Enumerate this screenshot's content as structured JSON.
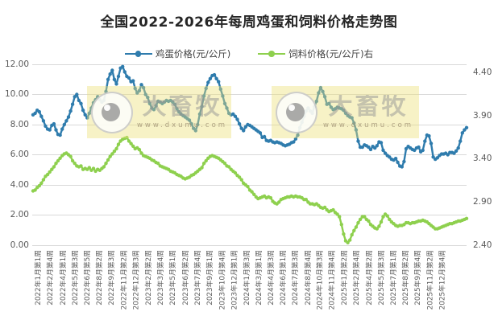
{
  "title": "全国2022-2026年每周鸡蛋和饲料价格走势图",
  "legend": {
    "items": [
      {
        "label": "鸡蛋价格(元/公斤)",
        "color": "#2f7cad"
      },
      {
        "label": "饲料价格(元/公斤)右",
        "color": "#8ed04e"
      }
    ]
  },
  "watermark": {
    "brand": "大畜牧",
    "url": "www.dxumu.com"
  },
  "colors": {
    "egg_line": "#2f7cad",
    "feed_line": "#8ed04e",
    "gridline": "#d9d9d9",
    "axis_text": "#595959",
    "title_text": "#262626",
    "watermark_box": "#ece078"
  },
  "chart_data": {
    "type": "line",
    "title": "全国2022-2026年每周鸡蛋和饲料价格走势图",
    "xlabel": "",
    "ylabel": "",
    "grid": true,
    "legend_position": "top",
    "left_axis": {
      "min": 0,
      "max": 12,
      "tick_labels": [
        "0.00",
        "2.00",
        "4.00",
        "6.00",
        "8.00",
        "10.00",
        "12.00"
      ]
    },
    "right_axis": {
      "min": 2.4,
      "max": 4.5,
      "tick_labels": [
        "2.40",
        "2.90",
        "3.40",
        "3.90",
        "4.40"
      ]
    },
    "x_labels": [
      "2022年1月第1周",
      "2022年2月第4周",
      "2022年4月第1周",
      "2022年5月第3周",
      "2022年6月第5周",
      "2022年8月第2周",
      "2022年9月第3周",
      "2022年11月第2周",
      "2022年12月第3周",
      "2023年2月第2周",
      "2023年3月第4周",
      "2023年5月第1周",
      "2023年6月第2周",
      "2023年7月第4周",
      "2023年9月第1周",
      "2023年10月第4周",
      "2023年12月第1周",
      "2024年1月第3周",
      "2024年3月第1周",
      "2024年4月第3周",
      "2024年6月第1周",
      "2024年7月第3周",
      "2024年8月第4周",
      "2024年10月第3周",
      "2024年11月第4周",
      "2025年1月第2周",
      "2025年2月第4周",
      "2025年4月第2周",
      "2025年5月第3周",
      "2025年7月第1周",
      "2025年8月第2周",
      "2025年9月第4周",
      "2025年11月第2周",
      "2025年12月第4周"
    ],
    "series": [
      {
        "name": "鸡蛋价格(元/公斤)",
        "axis": "left",
        "color": "#2f7cad",
        "values": [
          8.65,
          8.75,
          8.95,
          8.85,
          8.55,
          8.25,
          7.9,
          7.7,
          7.65,
          7.95,
          8.05,
          7.65,
          7.35,
          7.3,
          7.7,
          8.0,
          8.25,
          8.5,
          8.9,
          9.35,
          9.85,
          10.0,
          9.6,
          9.4,
          8.95,
          8.65,
          8.45,
          8.75,
          9.1,
          9.45,
          9.65,
          9.85,
          9.65,
          9.5,
          9.6,
          10.2,
          11.0,
          11.35,
          11.6,
          11.0,
          10.7,
          11.2,
          11.75,
          11.85,
          11.5,
          11.2,
          11.1,
          10.85,
          10.9,
          10.4,
          10.1,
          10.25,
          10.65,
          10.45,
          10.0,
          9.8,
          9.4,
          9.1,
          9.0,
          9.25,
          9.55,
          9.5,
          9.4,
          9.5,
          9.6,
          9.55,
          9.6,
          9.5,
          9.35,
          9.05,
          8.85,
          8.7,
          8.6,
          8.5,
          8.4,
          8.3,
          8.05,
          7.75,
          7.6,
          8.0,
          8.7,
          9.2,
          9.9,
          10.4,
          10.8,
          11.05,
          11.25,
          11.3,
          11.05,
          10.85,
          10.35,
          9.9,
          9.4,
          9.1,
          8.75,
          8.65,
          8.7,
          8.55,
          8.35,
          8.05,
          7.75,
          7.6,
          7.85,
          8.0,
          7.95,
          7.85,
          7.75,
          7.65,
          7.55,
          7.45,
          7.15,
          7.2,
          6.95,
          6.9,
          6.95,
          6.85,
          6.8,
          6.85,
          6.8,
          6.75,
          6.65,
          6.6,
          6.65,
          6.7,
          6.8,
          6.85,
          7.05,
          7.3,
          7.8,
          8.15,
          8.55,
          8.9,
          9.1,
          8.9,
          8.75,
          9.2,
          9.55,
          10.1,
          10.45,
          10.2,
          9.85,
          9.35,
          9.4,
          9.15,
          9.0,
          9.05,
          9.15,
          9.1,
          9.05,
          8.95,
          8.75,
          8.6,
          8.5,
          8.45,
          8.1,
          7.65,
          6.9,
          6.5,
          6.5,
          6.65,
          6.6,
          6.5,
          6.35,
          6.55,
          6.45,
          6.6,
          6.85,
          6.8,
          6.3,
          6.1,
          5.95,
          5.85,
          5.7,
          5.65,
          5.75,
          5.5,
          5.25,
          5.2,
          5.55,
          6.4,
          6.55,
          6.45,
          6.35,
          6.3,
          6.45,
          6.5,
          6.2,
          6.3,
          6.9,
          7.3,
          7.25,
          6.75,
          5.85,
          5.7,
          5.8,
          5.95,
          6.05,
          6.05,
          6.1,
          6.0,
          6.15,
          6.15,
          6.1,
          6.25,
          6.45,
          6.9,
          7.45,
          7.65,
          7.8
        ]
      },
      {
        "name": "饲料价格(元/公斤)右",
        "axis": "right",
        "color": "#8ed04e",
        "values": [
          3.03,
          3.04,
          3.07,
          3.09,
          3.12,
          3.16,
          3.2,
          3.22,
          3.25,
          3.28,
          3.31,
          3.35,
          3.38,
          3.41,
          3.44,
          3.46,
          3.47,
          3.45,
          3.43,
          3.38,
          3.35,
          3.32,
          3.31,
          3.32,
          3.28,
          3.29,
          3.28,
          3.3,
          3.27,
          3.29,
          3.26,
          3.28,
          3.27,
          3.29,
          3.31,
          3.35,
          3.39,
          3.43,
          3.46,
          3.49,
          3.52,
          3.57,
          3.61,
          3.63,
          3.64,
          3.65,
          3.61,
          3.58,
          3.55,
          3.52,
          3.53,
          3.51,
          3.47,
          3.44,
          3.43,
          3.42,
          3.41,
          3.39,
          3.38,
          3.36,
          3.35,
          3.32,
          3.31,
          3.3,
          3.29,
          3.28,
          3.26,
          3.25,
          3.24,
          3.22,
          3.21,
          3.2,
          3.18,
          3.17,
          3.18,
          3.19,
          3.21,
          3.22,
          3.24,
          3.26,
          3.28,
          3.3,
          3.35,
          3.38,
          3.41,
          3.43,
          3.44,
          3.43,
          3.42,
          3.41,
          3.39,
          3.37,
          3.35,
          3.32,
          3.31,
          3.28,
          3.26,
          3.24,
          3.21,
          3.19,
          3.16,
          3.12,
          3.1,
          3.08,
          3.04,
          3.02,
          2.99,
          2.96,
          2.94,
          2.95,
          2.96,
          2.97,
          2.95,
          2.96,
          2.95,
          2.91,
          2.89,
          2.88,
          2.9,
          2.93,
          2.94,
          2.95,
          2.96,
          2.96,
          2.97,
          2.96,
          2.97,
          2.96,
          2.96,
          2.95,
          2.93,
          2.93,
          2.9,
          2.88,
          2.88,
          2.87,
          2.88,
          2.86,
          2.84,
          2.83,
          2.84,
          2.81,
          2.79,
          2.8,
          2.81,
          2.78,
          2.76,
          2.73,
          2.64,
          2.53,
          2.45,
          2.43,
          2.46,
          2.52,
          2.57,
          2.61,
          2.66,
          2.7,
          2.73,
          2.73,
          2.7,
          2.68,
          2.64,
          2.62,
          2.6,
          2.59,
          2.62,
          2.67,
          2.73,
          2.76,
          2.74,
          2.7,
          2.67,
          2.65,
          2.63,
          2.62,
          2.63,
          2.63,
          2.64,
          2.66,
          2.66,
          2.65,
          2.66,
          2.66,
          2.67,
          2.68,
          2.68,
          2.69,
          2.68,
          2.67,
          2.65,
          2.63,
          2.61,
          2.59,
          2.59,
          2.6,
          2.61,
          2.62,
          2.63,
          2.64,
          2.65,
          2.65,
          2.66,
          2.67,
          2.68,
          2.68,
          2.69,
          2.7,
          2.71
        ]
      }
    ]
  }
}
